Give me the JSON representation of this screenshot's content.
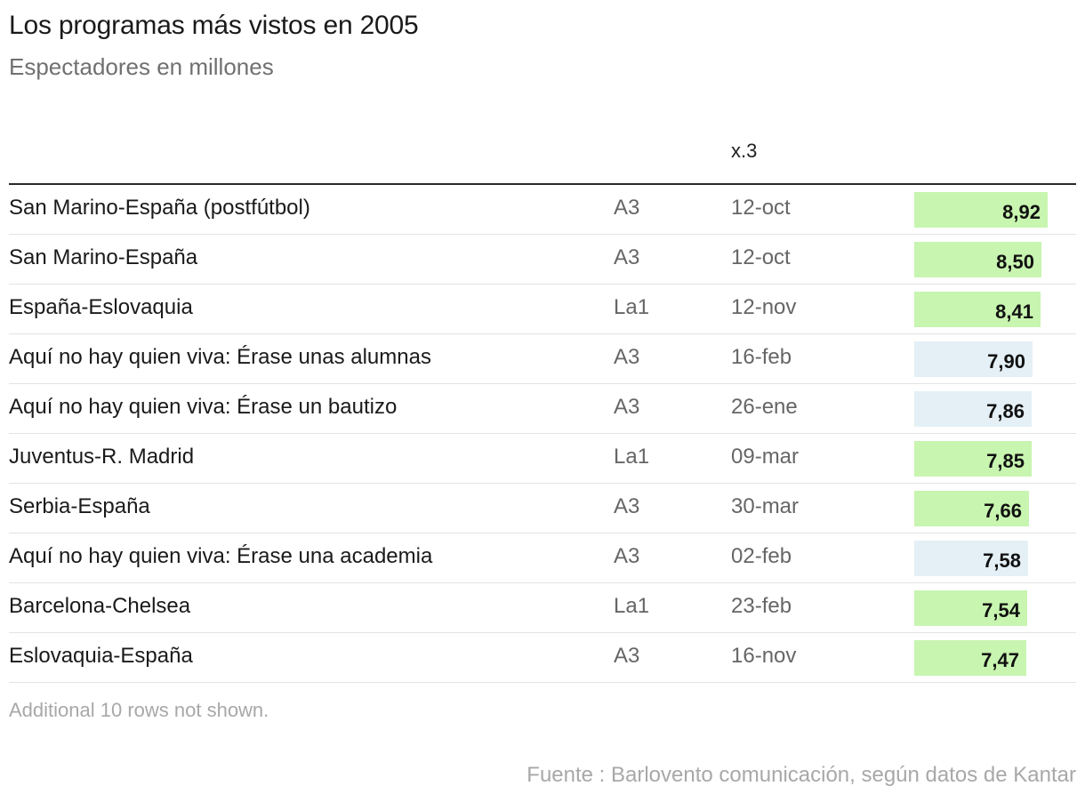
{
  "title": "Los programas más vistos en 2005",
  "subtitle": "Espectadores en millones",
  "column_header": "x.3",
  "note": "Additional 10 rows not shown.",
  "source": "Fuente : Barlovento comunicación, según datos de Kantar",
  "colors": {
    "sport_bar": "#c8f5b0",
    "series_bar": "#e4f0f6"
  },
  "chart_data": {
    "type": "table",
    "title": "Los programas más vistos en 2005",
    "subtitle": "Espectadores en millones",
    "column_header": "x.3",
    "value_max": 8.92,
    "rows": [
      {
        "program": "San Marino-España (postfútbol)",
        "channel": "A3",
        "date": "12-oct",
        "value": 8.92,
        "label": "8,92",
        "category": "sport"
      },
      {
        "program": "San Marino-España",
        "channel": "A3",
        "date": "12-oct",
        "value": 8.5,
        "label": "8,50",
        "category": "sport"
      },
      {
        "program": "España-Eslovaquia",
        "channel": "La1",
        "date": "12-nov",
        "value": 8.41,
        "label": "8,41",
        "category": "sport"
      },
      {
        "program": "Aquí no hay quien viva: Érase unas alumnas",
        "channel": "A3",
        "date": "16-feb",
        "value": 7.9,
        "label": "7,90",
        "category": "series"
      },
      {
        "program": "Aquí no hay quien viva: Érase un bautizo",
        "channel": "A3",
        "date": "26-ene",
        "value": 7.86,
        "label": "7,86",
        "category": "series"
      },
      {
        "program": "Juventus-R. Madrid",
        "channel": "La1",
        "date": "09-mar",
        "value": 7.85,
        "label": "7,85",
        "category": "sport"
      },
      {
        "program": "Serbia-España",
        "channel": "A3",
        "date": "30-mar",
        "value": 7.66,
        "label": "7,66",
        "category": "sport"
      },
      {
        "program": "Aquí no hay quien viva: Érase una academia",
        "channel": "A3",
        "date": "02-feb",
        "value": 7.58,
        "label": "7,58",
        "category": "series"
      },
      {
        "program": "Barcelona-Chelsea",
        "channel": "La1",
        "date": "23-feb",
        "value": 7.54,
        "label": "7,54",
        "category": "sport"
      },
      {
        "program": "Eslovaquia-España",
        "channel": "A3",
        "date": "16-nov",
        "value": 7.47,
        "label": "7,47",
        "category": "sport"
      }
    ]
  }
}
